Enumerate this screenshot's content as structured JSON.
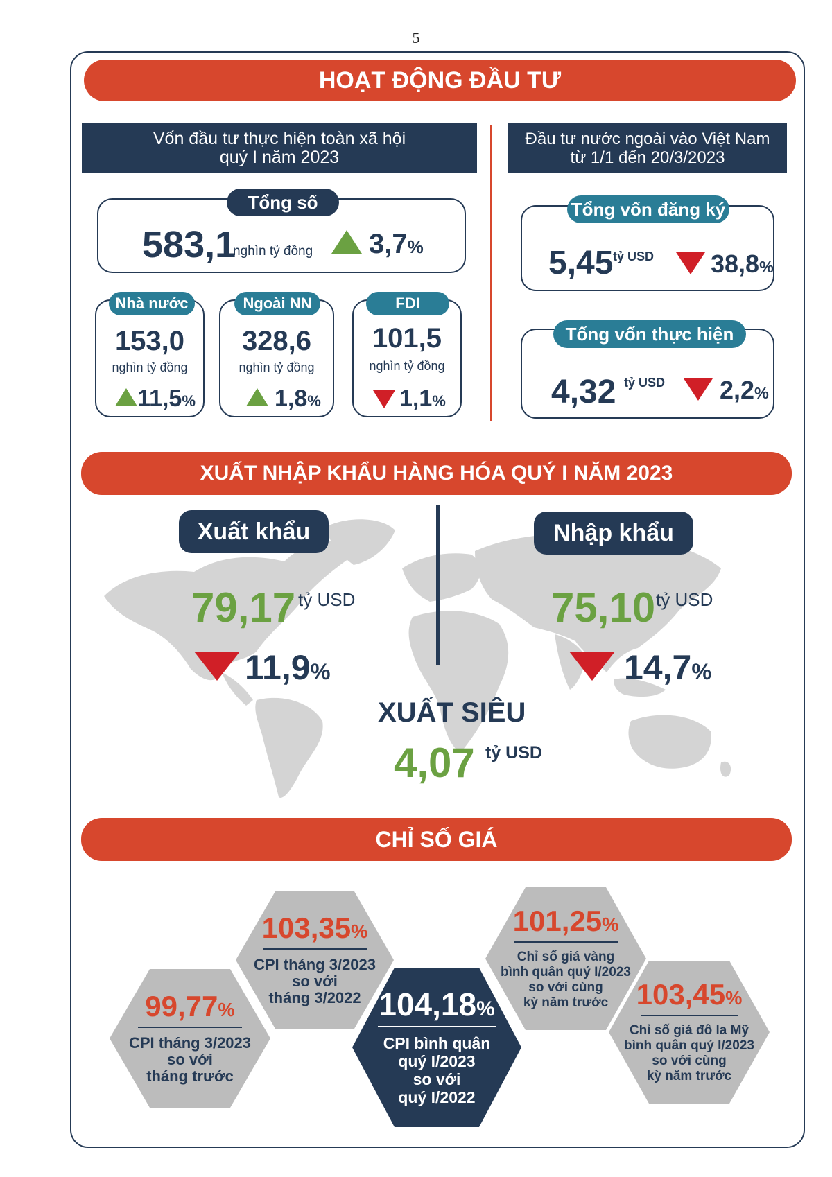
{
  "page_number": "5",
  "investment": {
    "title": "HOẠT ĐỘNG ĐẦU TƯ",
    "domestic_header_line1": "Vốn đầu tư thực hiện toàn xã hội",
    "domestic_header_line2": "quý I năm 2023",
    "total_label": "Tổng số",
    "total_value": "583,1",
    "total_unit": "nghìn tỷ đồng",
    "total_change": "3,7",
    "cards": [
      {
        "label": "Nhà nước",
        "value": "153,0",
        "unit": "nghìn tỷ đồng",
        "change": "11,5",
        "direction": "up"
      },
      {
        "label": "Ngoài NN",
        "value": "328,6",
        "unit": "nghìn tỷ đồng",
        "change": "1,8",
        "direction": "up"
      },
      {
        "label": "FDI",
        "value": "101,5",
        "unit": "nghìn tỷ đồng",
        "change": "1,1",
        "direction": "down"
      }
    ],
    "fdi_header_line1": "Đầu tư nước ngoài vào Việt Nam",
    "fdi_header_line2": "từ 1/1 đến 20/3/2023",
    "registered_label": "Tổng vốn đăng ký",
    "registered_value": "5,45",
    "registered_unit": "tỷ USD",
    "registered_change": "38,8",
    "disbursed_label": "Tổng vốn thực hiện",
    "disbursed_value": "4,32",
    "disbursed_unit": "tỷ USD",
    "disbursed_change": "2,2",
    "percent_sign": "%"
  },
  "trade": {
    "title": "XUẤT NHẬP KHẨU HÀNG HÓA QUÝ I NĂM 2023",
    "export_label": "Xuất khẩu",
    "export_value": "79,17",
    "export_unit": "tỷ USD",
    "export_change": "11,9",
    "import_label": "Nhập khẩu",
    "import_value": "75,10",
    "import_unit": "tỷ USD",
    "import_change": "14,7",
    "surplus_label": "XUẤT SIÊU",
    "surplus_value": "4,07",
    "surplus_unit": "tỷ USD"
  },
  "prices": {
    "title": "CHỈ SỐ GIÁ",
    "hexagons": [
      {
        "value": "99,77",
        "line1": "CPI tháng 3/2023",
        "line2": "so với",
        "line3": "tháng trước"
      },
      {
        "value": "103,35",
        "line1": "CPI tháng 3/2023",
        "line2": "so với",
        "line3": "tháng 3/2022"
      },
      {
        "value": "104,18",
        "line1": "CPI bình quân",
        "line2": "quý I/2023",
        "line3": "so với",
        "line4": "quý I/2022"
      },
      {
        "value": "101,25",
        "line1": "Chỉ số giá vàng",
        "line2": "bình quân quý I/2023",
        "line3": "so với cùng",
        "line4": "kỳ năm trước"
      },
      {
        "value": "103,45",
        "line1": "Chỉ số giá đô la Mỹ",
        "line2": "bình quân quý I/2023",
        "line3": "so với cùng",
        "line4": "kỳ năm trước"
      }
    ]
  },
  "colors": {
    "navy": "#253a55",
    "banner": "#d7472d",
    "teal": "#2a7d96",
    "up_green": "#6ba142",
    "down_red": "#d01f27",
    "map_gray": "#d4d4d4",
    "hex_gray": "#bcbcbc"
  }
}
